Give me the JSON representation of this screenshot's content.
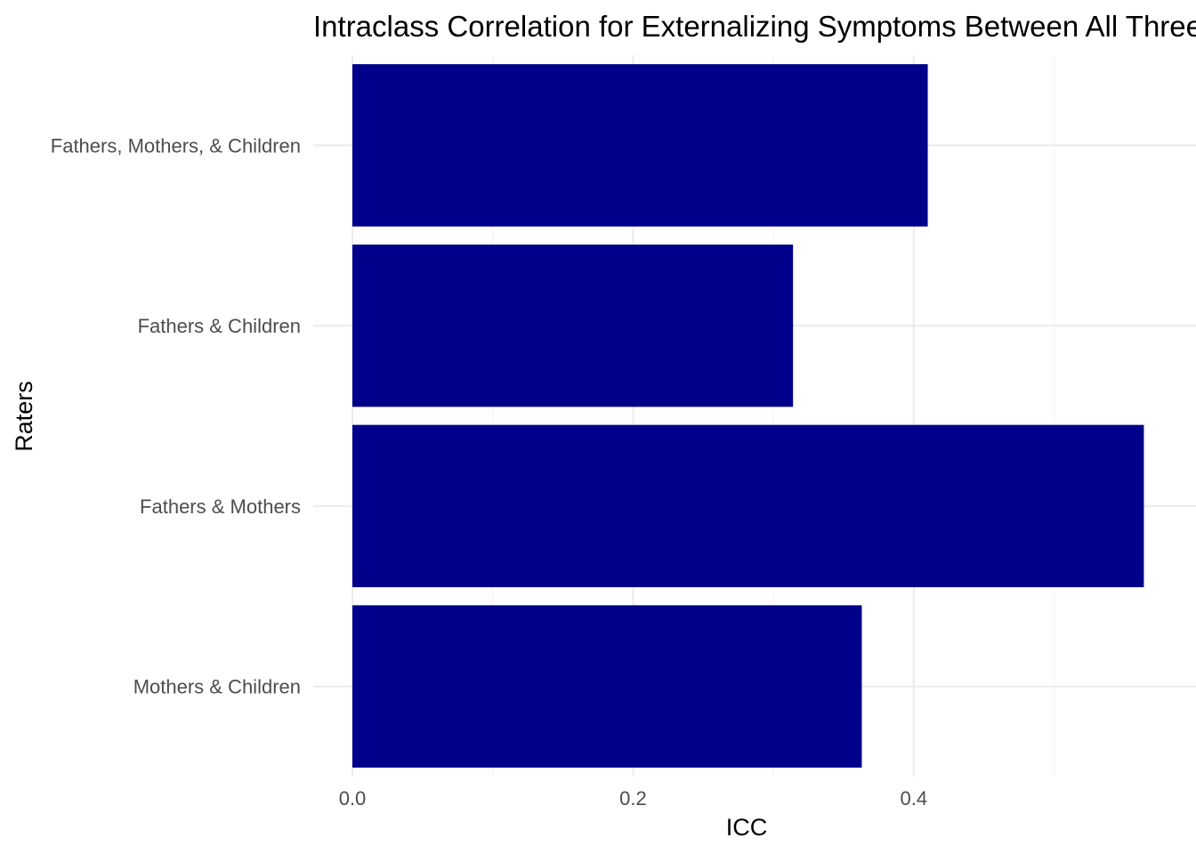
{
  "chart_data": {
    "type": "bar",
    "orientation": "horizontal",
    "title": "Intraclass Correlation for Externalizing Symptoms Between All Three Raters",
    "xlabel": "ICC",
    "ylabel": "Raters",
    "categories": [
      "Fathers, Mothers, & Children",
      "Fathers & Children",
      "Fathers & Mothers",
      "Mothers & Children"
    ],
    "values": [
      0.41,
      0.314,
      0.564,
      0.363
    ],
    "xlim": [
      0,
      0.58
    ],
    "xticks": [
      0.0,
      0.2,
      0.4
    ],
    "xtick_labels": [
      "0.0",
      "0.2",
      "0.4"
    ],
    "bar_color": "#00008B",
    "grid": true,
    "legend": "none"
  }
}
